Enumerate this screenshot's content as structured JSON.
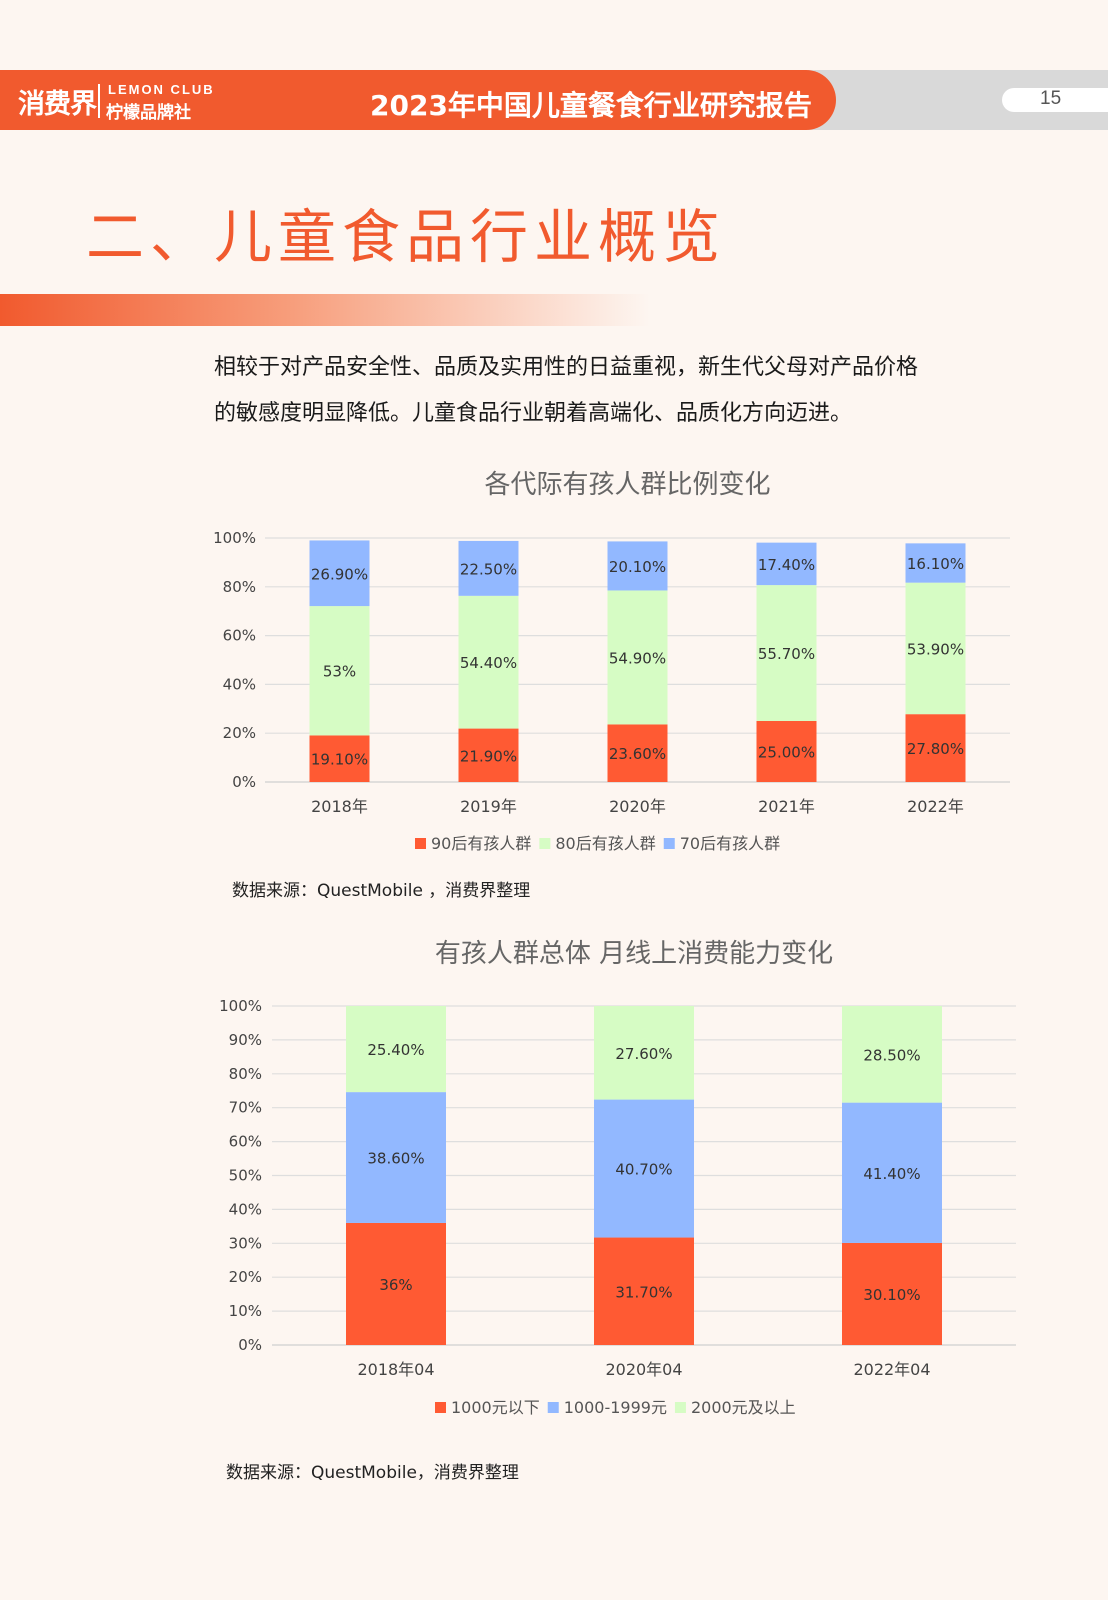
{
  "header": {
    "logo_main": "消费界",
    "logo_sub_en": "LEMON CLUB",
    "logo_sub_cn": "柠檬品牌社",
    "report_title": "2023年中国儿童餐食行业研究报告",
    "page_number": "15"
  },
  "section": {
    "title": "二、儿童食品行业概览"
  },
  "intro": {
    "line1": "相较于对产品安全性、品质及实用性的日益重视，新生代父母对产品价格",
    "line2": "的敏感度明显降低。儿童食品行业朝着高端化、品质化方向迈进。"
  },
  "chart_data": [
    {
      "type": "bar",
      "stacked": true,
      "title": "各代际有孩人群比例变化",
      "categories": [
        "2018年",
        "2019年",
        "2020年",
        "2021年",
        "2022年"
      ],
      "y_ticks": [
        "0%",
        "20%",
        "40%",
        "60%",
        "80%",
        "100%"
      ],
      "ylim": [
        0,
        100
      ],
      "grid": true,
      "legend_position": "bottom",
      "series": [
        {
          "name": "90后有孩人群",
          "color": "#ff5a33",
          "values": [
            19.1,
            21.9,
            23.6,
            25.0,
            27.8
          ],
          "labels": [
            "19.10%",
            "21.90%",
            "23.60%",
            "25.00%",
            "27.80%"
          ]
        },
        {
          "name": "80后有孩人群",
          "color": "#d6fcc4",
          "values": [
            53.0,
            54.4,
            54.9,
            55.7,
            53.9
          ],
          "labels": [
            "53%",
            "54.40%",
            "54.90%",
            "55.70%",
            "53.90%"
          ]
        },
        {
          "name": "70后有孩人群",
          "color": "#92b8ff",
          "values": [
            26.9,
            22.5,
            20.1,
            17.4,
            16.1
          ],
          "labels": [
            "26.90%",
            "22.50%",
            "20.10%",
            "17.40%",
            "16.10%"
          ]
        }
      ],
      "source": "数据来源：QuestMobile ，消费界整理"
    },
    {
      "type": "bar",
      "stacked": true,
      "title": "有孩人群总体 月线上消费能力变化",
      "categories": [
        "2018年04",
        "2020年04",
        "2022年04"
      ],
      "y_ticks": [
        "0%",
        "10%",
        "20%",
        "30%",
        "40%",
        "50%",
        "60%",
        "70%",
        "80%",
        "90%",
        "100%"
      ],
      "ylim": [
        0,
        100
      ],
      "grid": true,
      "legend_position": "bottom",
      "series": [
        {
          "name": "1000元以下",
          "color": "#ff5a33",
          "values": [
            36.0,
            31.7,
            30.1
          ],
          "labels": [
            "36%",
            "31.70%",
            "30.10%"
          ]
        },
        {
          "name": "1000-1999元",
          "color": "#92b8ff",
          "values": [
            38.6,
            40.7,
            41.4
          ],
          "labels": [
            "38.60%",
            "40.70%",
            "41.40%"
          ]
        },
        {
          "name": "2000元及以上",
          "color": "#d6fcc4",
          "values": [
            25.4,
            27.6,
            28.5
          ],
          "labels": [
            "25.40%",
            "27.60%",
            "28.50%"
          ]
        }
      ],
      "source": "数据来源：QuestMobile，消费界整理"
    }
  ]
}
